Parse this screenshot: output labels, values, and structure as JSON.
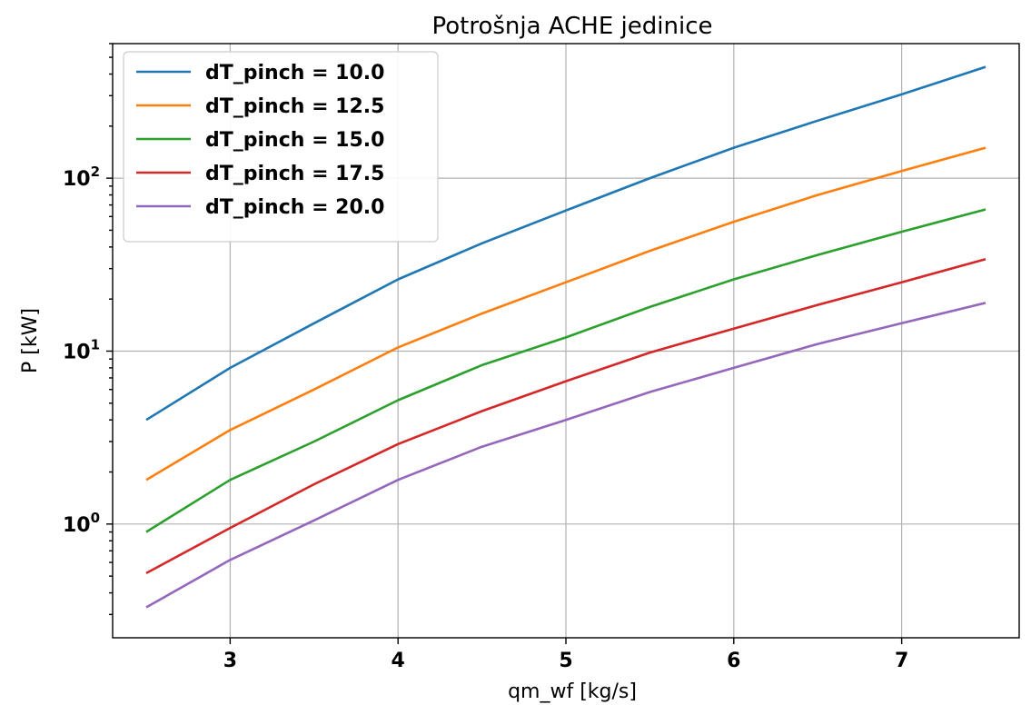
{
  "chart_data": {
    "type": "line",
    "title": "Potrošnja ACHE jedinice",
    "xlabel": "qm_wf [kg/s]",
    "ylabel": "P [kW]",
    "xlim": [
      2.3,
      7.7
    ],
    "ylim": [
      0.22,
      600
    ],
    "yscale": "log",
    "grid": true,
    "legend_position": "top-left",
    "x_ticks": [
      {
        "value": 3,
        "label": "3"
      },
      {
        "value": 4,
        "label": "4"
      },
      {
        "value": 5,
        "label": "5"
      },
      {
        "value": 6,
        "label": "6"
      },
      {
        "value": 7,
        "label": "7"
      }
    ],
    "y_ticks": [
      {
        "value": 1,
        "base": "10",
        "exp": "0"
      },
      {
        "value": 10,
        "base": "10",
        "exp": "1"
      },
      {
        "value": 100,
        "base": "10",
        "exp": "2"
      }
    ],
    "x": [
      2.5,
      3.0,
      3.5,
      4.0,
      4.5,
      5.0,
      5.5,
      6.0,
      6.5,
      7.0,
      7.5
    ],
    "series": [
      {
        "name": "dT_pinch = 10.0",
        "color": "#1f77b4",
        "values": [
          4.0,
          8.0,
          14.5,
          26.0,
          42.0,
          65.0,
          100.0,
          150.0,
          215.0,
          305.0,
          440.0
        ]
      },
      {
        "name": "dT_pinch = 12.5",
        "color": "#ff7f0e",
        "values": [
          1.8,
          3.5,
          6.0,
          10.5,
          16.5,
          25.0,
          38.0,
          56.0,
          80.0,
          110.0,
          150.0
        ]
      },
      {
        "name": "dT_pinch = 15.0",
        "color": "#2ca02c",
        "values": [
          0.9,
          1.8,
          3.0,
          5.2,
          8.3,
          12.0,
          18.0,
          26.0,
          36.0,
          49.0,
          66.0
        ]
      },
      {
        "name": "dT_pinch = 17.5",
        "color": "#d62728",
        "values": [
          0.52,
          0.95,
          1.7,
          2.9,
          4.5,
          6.7,
          9.8,
          13.5,
          18.5,
          25.0,
          34.0
        ]
      },
      {
        "name": "dT_pinch = 20.0",
        "color": "#9467bd",
        "values": [
          0.33,
          0.62,
          1.05,
          1.8,
          2.8,
          4.0,
          5.8,
          8.0,
          11.0,
          14.5,
          19.0
        ]
      }
    ]
  }
}
